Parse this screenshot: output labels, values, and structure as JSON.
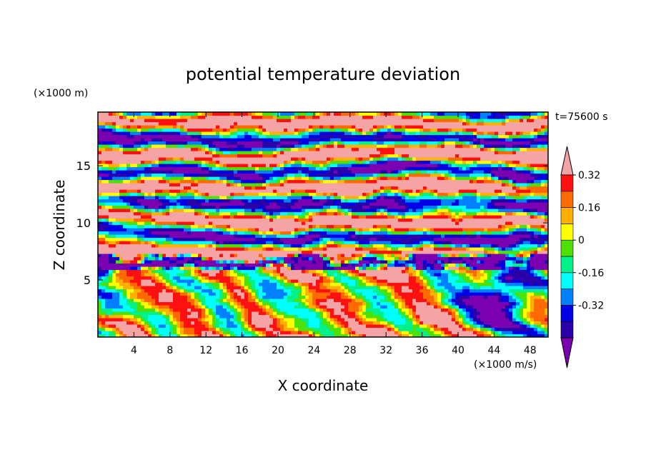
{
  "chart_data": {
    "type": "heatmap",
    "title": "potential temperature deviation",
    "xlabel": "X coordinate",
    "ylabel": "Z coordinate",
    "x_unit": "(×1000 m/s)",
    "y_unit": "(×1000 m)",
    "time_label": "t=75600 s",
    "xlim": [
      0,
      50
    ],
    "ylim": [
      0,
      19.7
    ],
    "x_ticks": [
      4,
      8,
      12,
      16,
      20,
      24,
      28,
      32,
      36,
      40,
      44,
      48
    ],
    "y_ticks": [
      5,
      10,
      15
    ],
    "colorbar": {
      "levels": [
        -0.48,
        -0.4,
        -0.32,
        -0.24,
        -0.16,
        -0.08,
        0,
        0.08,
        0.16,
        0.24,
        0.32,
        0.4
      ],
      "labels": [
        "0.32",
        "0.16",
        "0",
        "-0.16",
        "-0.32"
      ],
      "label_values": [
        0.32,
        0.16,
        0,
        -0.16,
        -0.32
      ],
      "colors": [
        "#7b00b0",
        "#2a00a8",
        "#0000e6",
        "#0080ff",
        "#00ffff",
        "#00f08a",
        "#50e000",
        "#ffff00",
        "#ffb000",
        "#ff6a00",
        "#ff1010",
        "#f4a4a4"
      ],
      "extend": "both"
    }
  }
}
